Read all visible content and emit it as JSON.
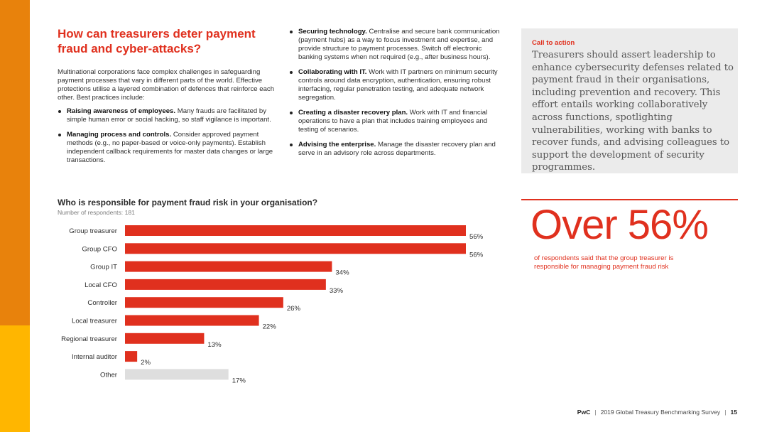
{
  "heading": "How can treasurers deter payment fraud and cyber-attacks?",
  "intro": "Multinational corporations face complex challenges in safeguarding payment processes that vary in different parts of the world. Effective protections utilise a layered combination of defences that reinforce each other. Best practices include:",
  "practices_col1": [
    {
      "title": "Raising awareness of employees.",
      "text": "Many frauds are facilitated by simple human error or social hacking, so staff vigilance is important."
    },
    {
      "title": "Managing process and controls.",
      "text": "Consider approved payment methods (e.g., no paper-based or voice-only payments). Establish independent callback requirements for master data changes or large transactions."
    }
  ],
  "practices_col2": [
    {
      "title": "Securing technology.",
      "text": "Centralise and secure bank communication (payment hubs) as a way to focus investment and expertise, and provide structure to payment processes. Switch off electronic banking systems when not required (e.g., after business hours)."
    },
    {
      "title": "Collaborating with IT.",
      "text": "Work with IT partners on minimum security controls around data encryption, authentication, ensuring robust interfacing, regular penetration testing, and adequate network segregation."
    },
    {
      "title": "Creating a disaster recovery plan.",
      "text": "Work with IT and financial operations to have a plan that includes training employees and testing of scenarios."
    },
    {
      "title": "Advising the enterprise.",
      "text": "Manage the disaster recovery plan and serve in an advisory role across departments."
    }
  ],
  "cta": {
    "label": "Call to action",
    "text": "Treasurers should assert leadership to enhance cybersecurity defenses related to payment fraud in their organisations, including prevention and recovery. This effort entails working collaboratively across functions, spotlighting vulnerabilities, working with banks to recover funds, and advising colleagues to support the development of security programmes."
  },
  "chart_data": {
    "type": "bar",
    "orientation": "horizontal",
    "title": "Who is responsible for payment fraud risk in your organisation?",
    "subtitle": "Number of respondents: 181",
    "categories": [
      "Group treasurer",
      "Group CFO",
      "Group IT",
      "Local CFO",
      "Controller",
      "Local treasurer",
      "Regional treasurer",
      "Internal auditor",
      "Other"
    ],
    "values": [
      56,
      56,
      34,
      33,
      26,
      22,
      13,
      2,
      17
    ],
    "value_labels": [
      "56%",
      "56%",
      "34%",
      "33%",
      "26%",
      "22%",
      "13%",
      "2%",
      "17%"
    ],
    "unit": "%",
    "colors": [
      "#E0301E",
      "#E0301E",
      "#E0301E",
      "#E0301E",
      "#E0301E",
      "#E0301E",
      "#E0301E",
      "#E0301E",
      "#DEDEDE"
    ],
    "xlim": [
      0,
      56
    ],
    "grid": false,
    "legend": "none"
  },
  "stat": {
    "big": "Over 56%",
    "caption": "of respondents said that the group treasurer is responsible for managing payment fraud risk"
  },
  "footer": {
    "brand": "PwC",
    "survey": "2019 Global Treasury Benchmarking Survey",
    "page": "15"
  },
  "colors": {
    "accent": "#E0301E",
    "sidebar_orange": "#E8820C",
    "sidebar_yellow": "#FFB600",
    "cta_background": "#EBEBEB",
    "other_bar": "#DEDEDE"
  }
}
